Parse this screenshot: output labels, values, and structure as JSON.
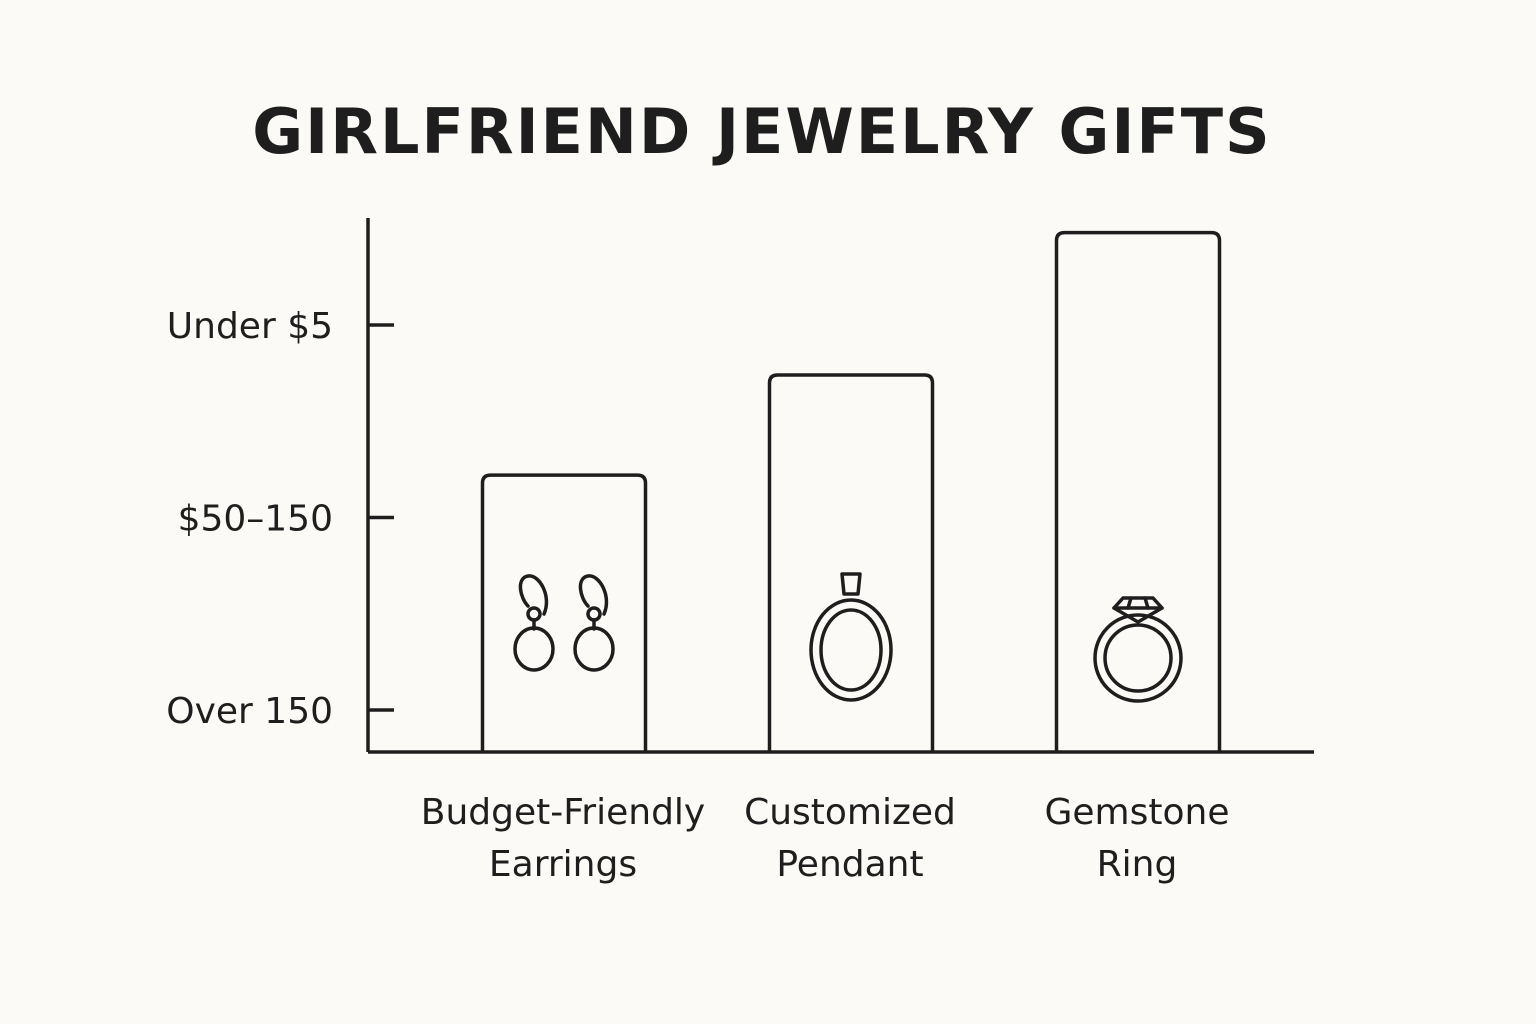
{
  "chart_data": {
    "type": "bar",
    "title": "GIRLFRIEND JEWELRY GIFTS",
    "xlabel": "",
    "ylabel": "",
    "categories": [
      {
        "line1": "Budget-Friendly",
        "line2": "Earrings",
        "icon": "earrings-icon"
      },
      {
        "line1": "Customized",
        "line2": "Pendant",
        "icon": "pendant-icon"
      },
      {
        "line1": "Gemstone",
        "line2": "Ring",
        "icon": "ring-icon"
      }
    ],
    "values": [
      1.22,
      1.74,
      2.48
    ],
    "yticks": [
      {
        "label": "Over 150",
        "value": 0
      },
      {
        "label": "$50–150",
        "value": 1
      },
      {
        "label": "Under $5",
        "value": 2
      }
    ],
    "ylim": [
      -0.22,
      2.68
    ],
    "grid": false,
    "legend": "none",
    "colors": {
      "stroke": "#1e1e1e",
      "background": "#fcfaf6"
    }
  }
}
